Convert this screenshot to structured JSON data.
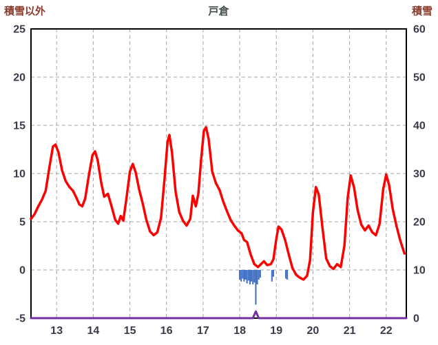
{
  "header": {
    "left_axis_title": "積雪以外",
    "title": "戸倉",
    "right_axis_title": "積雪"
  },
  "colors": {
    "axis_title_text": "#8b3a2a",
    "chart_title_text": "#44504a"
  },
  "chart_data": {
    "type": "line+bar",
    "title": "戸倉",
    "x_axis": {
      "range": [
        12.3,
        22.55
      ],
      "ticks": [
        13,
        14,
        15,
        16,
        17,
        18,
        19,
        20,
        21,
        22
      ]
    },
    "left_y_axis": {
      "label": "積雪以外",
      "range": [
        -5,
        25
      ],
      "ticks": [
        25,
        20,
        15,
        10,
        5,
        0,
        -5
      ]
    },
    "right_y_axis": {
      "label": "積雪",
      "range": [
        0,
        60
      ],
      "ticks": [
        60,
        50,
        40,
        30,
        20,
        10,
        0
      ]
    },
    "grid": true,
    "legend": "none",
    "bar_width": 0.04,
    "colors": {
      "grid": "#a3a3a3",
      "frame": "#000000",
      "tick_text": "#3a3a4a"
    },
    "series": [
      {
        "name": "blue-bars",
        "type": "bar",
        "axis": "left",
        "color": "#4472c4",
        "points": [
          [
            18.0,
            -1.0
          ],
          [
            18.04,
            -1.2
          ],
          [
            18.08,
            -0.9
          ],
          [
            18.12,
            -1.2
          ],
          [
            18.16,
            -1.0
          ],
          [
            18.2,
            -1.4
          ],
          [
            18.24,
            -1.1
          ],
          [
            18.28,
            -1.5
          ],
          [
            18.32,
            -1.2
          ],
          [
            18.36,
            -1.5
          ],
          [
            18.4,
            -1.3
          ],
          [
            18.44,
            -3.6
          ],
          [
            18.48,
            -1.5
          ],
          [
            18.52,
            -1.0
          ],
          [
            18.56,
            -0.8
          ],
          [
            18.88,
            -1.2
          ],
          [
            18.92,
            -0.7
          ],
          [
            19.26,
            -0.9
          ],
          [
            19.3,
            -1.0
          ]
        ]
      },
      {
        "name": "purple-snow-line",
        "type": "line",
        "axis": "right",
        "color": "#7030a0",
        "width": 3,
        "points": [
          [
            12.3,
            0
          ],
          [
            18.36,
            0
          ],
          [
            18.44,
            1.4
          ],
          [
            18.52,
            0
          ],
          [
            22.55,
            0
          ]
        ]
      },
      {
        "name": "red-line",
        "type": "line",
        "axis": "left",
        "color": "#ff0000",
        "width": 3.5,
        "points": [
          [
            12.3,
            5.3
          ],
          [
            12.4,
            5.8
          ],
          [
            12.5,
            6.6
          ],
          [
            12.6,
            7.3
          ],
          [
            12.7,
            8.2
          ],
          [
            12.8,
            10.6
          ],
          [
            12.9,
            12.8
          ],
          [
            12.97,
            13.0
          ],
          [
            13.05,
            12.2
          ],
          [
            13.15,
            10.3
          ],
          [
            13.25,
            9.2
          ],
          [
            13.35,
            8.6
          ],
          [
            13.45,
            8.2
          ],
          [
            13.55,
            7.4
          ],
          [
            13.62,
            6.8
          ],
          [
            13.7,
            6.6
          ],
          [
            13.78,
            7.4
          ],
          [
            13.88,
            9.8
          ],
          [
            13.98,
            11.9
          ],
          [
            14.05,
            12.3
          ],
          [
            14.12,
            11.4
          ],
          [
            14.22,
            9.0
          ],
          [
            14.3,
            7.6
          ],
          [
            14.4,
            7.9
          ],
          [
            14.5,
            6.6
          ],
          [
            14.6,
            5.2
          ],
          [
            14.68,
            4.8
          ],
          [
            14.75,
            5.6
          ],
          [
            14.82,
            5.1
          ],
          [
            14.9,
            7.2
          ],
          [
            15.0,
            10.2
          ],
          [
            15.08,
            11.0
          ],
          [
            15.16,
            10.1
          ],
          [
            15.25,
            8.4
          ],
          [
            15.35,
            6.9
          ],
          [
            15.45,
            5.2
          ],
          [
            15.55,
            4.0
          ],
          [
            15.65,
            3.6
          ],
          [
            15.75,
            3.9
          ],
          [
            15.85,
            5.4
          ],
          [
            15.95,
            9.6
          ],
          [
            16.03,
            13.3
          ],
          [
            16.08,
            14.0
          ],
          [
            16.15,
            12.2
          ],
          [
            16.25,
            8.1
          ],
          [
            16.35,
            6.0
          ],
          [
            16.45,
            5.1
          ],
          [
            16.55,
            4.6
          ],
          [
            16.65,
            5.3
          ],
          [
            16.72,
            7.7
          ],
          [
            16.8,
            6.6
          ],
          [
            16.87,
            7.9
          ],
          [
            16.95,
            11.6
          ],
          [
            17.02,
            14.4
          ],
          [
            17.08,
            14.8
          ],
          [
            17.15,
            13.6
          ],
          [
            17.25,
            10.2
          ],
          [
            17.35,
            9.0
          ],
          [
            17.45,
            8.3
          ],
          [
            17.55,
            7.1
          ],
          [
            17.65,
            6.1
          ],
          [
            17.75,
            5.2
          ],
          [
            17.85,
            4.6
          ],
          [
            17.95,
            4.1
          ],
          [
            18.05,
            3.8
          ],
          [
            18.12,
            3.1
          ],
          [
            18.2,
            2.9
          ],
          [
            18.3,
            1.6
          ],
          [
            18.4,
            0.6
          ],
          [
            18.5,
            0.3
          ],
          [
            18.58,
            0.6
          ],
          [
            18.66,
            0.9
          ],
          [
            18.75,
            0.5
          ],
          [
            18.85,
            0.6
          ],
          [
            18.92,
            1.1
          ],
          [
            19.0,
            3.2
          ],
          [
            19.06,
            4.5
          ],
          [
            19.14,
            4.2
          ],
          [
            19.24,
            3.1
          ],
          [
            19.34,
            1.6
          ],
          [
            19.44,
            0.2
          ],
          [
            19.54,
            -0.5
          ],
          [
            19.64,
            -0.8
          ],
          [
            19.74,
            -1.0
          ],
          [
            19.84,
            -0.6
          ],
          [
            19.92,
            1.0
          ],
          [
            20.0,
            6.0
          ],
          [
            20.08,
            8.6
          ],
          [
            20.16,
            7.8
          ],
          [
            20.26,
            4.4
          ],
          [
            20.36,
            1.2
          ],
          [
            20.46,
            0.4
          ],
          [
            20.56,
            0.1
          ],
          [
            20.66,
            0.6
          ],
          [
            20.76,
            0.3
          ],
          [
            20.86,
            2.5
          ],
          [
            20.95,
            7.5
          ],
          [
            21.03,
            9.8
          ],
          [
            21.12,
            8.6
          ],
          [
            21.22,
            6.2
          ],
          [
            21.32,
            4.7
          ],
          [
            21.42,
            4.1
          ],
          [
            21.52,
            4.6
          ],
          [
            21.62,
            3.9
          ],
          [
            21.72,
            3.6
          ],
          [
            21.82,
            4.8
          ],
          [
            21.92,
            8.4
          ],
          [
            22.0,
            9.9
          ],
          [
            22.08,
            8.8
          ],
          [
            22.18,
            6.3
          ],
          [
            22.28,
            4.6
          ],
          [
            22.38,
            3.1
          ],
          [
            22.5,
            1.7
          ]
        ]
      }
    ]
  }
}
